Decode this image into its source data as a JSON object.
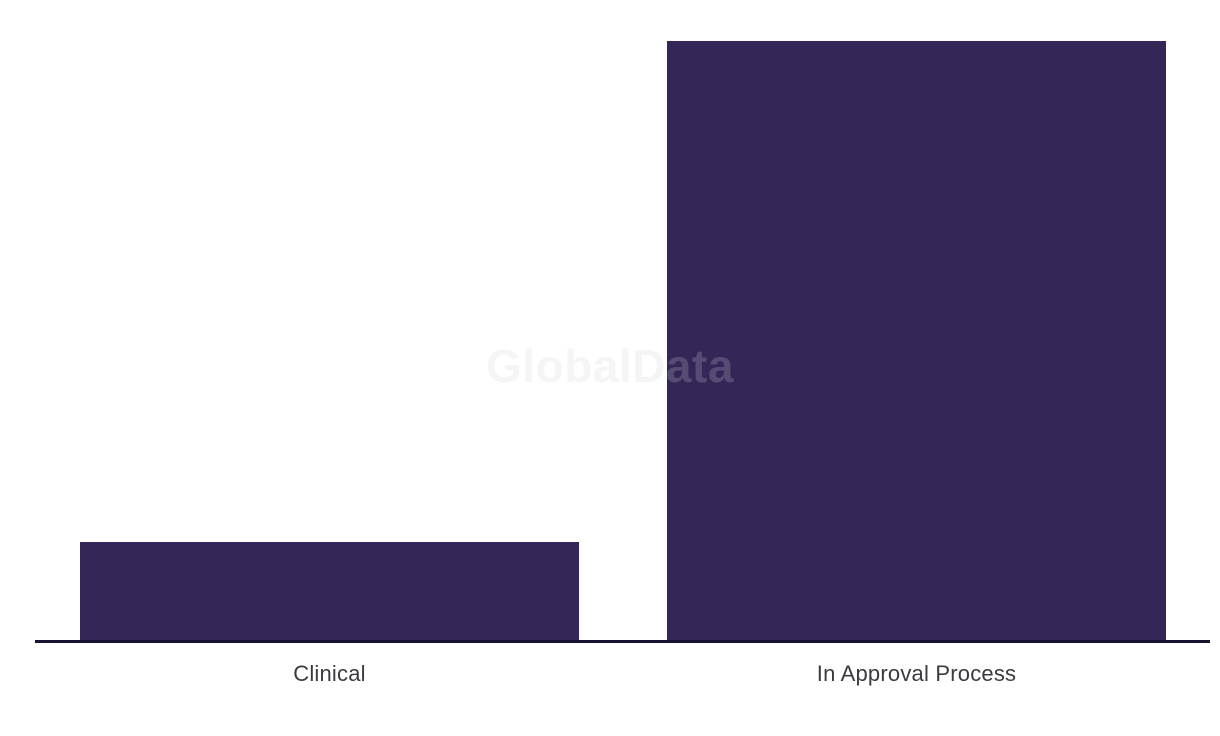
{
  "watermark": {
    "text": "GlobalData",
    "color": "#d2d2d6",
    "opacity": 0.22
  },
  "chart_data": {
    "type": "bar",
    "title": "",
    "xlabel": "",
    "ylabel": "",
    "categories": [
      "Clinical",
      "In Approval Process"
    ],
    "values": [
      16.4,
      100
    ],
    "value_unit": "percent-of-max-bar-height",
    "y_axis_shown": false,
    "gridlines_shown": false,
    "legend": "none",
    "bar_color": "#342657",
    "axis_line_color": "#16142e",
    "label_color": "#3b3b40",
    "background_color": "#ffffff"
  }
}
